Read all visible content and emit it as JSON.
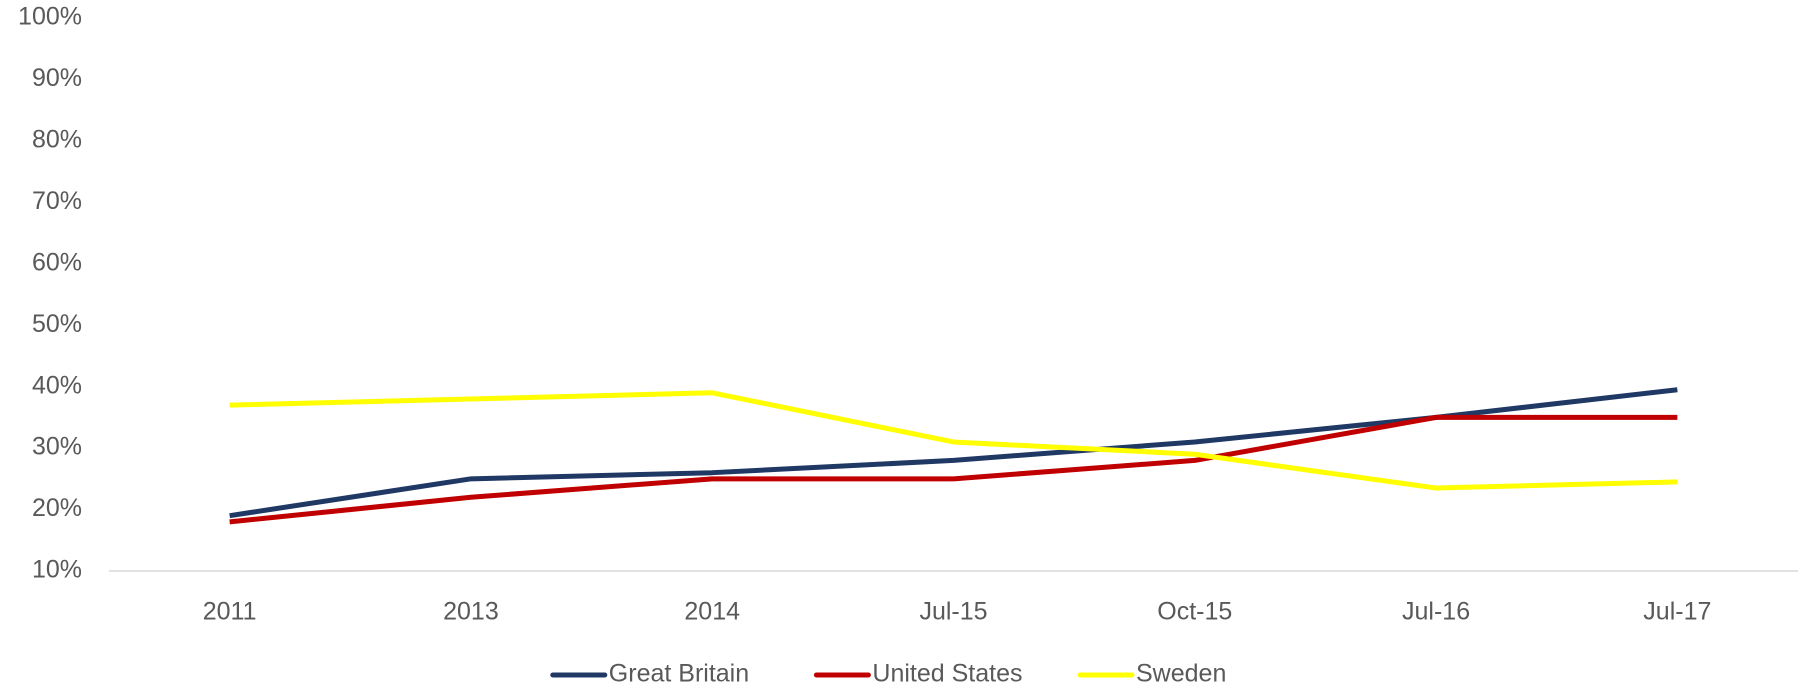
{
  "chart_data": {
    "type": "line",
    "categories": [
      "2011",
      "2013",
      "2014",
      "Jul-15",
      "Oct-15",
      "Jul-16",
      "Jul-17"
    ],
    "series": [
      {
        "name": "Great Britain",
        "color": "#1f3864",
        "values": [
          19,
          25,
          26,
          28,
          31,
          35,
          39.5
        ]
      },
      {
        "name": "United States",
        "color": "#c00000",
        "values": [
          18,
          22,
          25,
          25,
          28,
          35,
          35
        ]
      },
      {
        "name": "Sweden",
        "color": "#ffff00",
        "values": [
          37,
          38,
          39,
          31,
          29,
          23.5,
          24.5
        ]
      }
    ],
    "ylim": [
      10,
      100
    ],
    "yticks": [
      {
        "value": 10,
        "label": "10%"
      },
      {
        "value": 20,
        "label": "20%"
      },
      {
        "value": 30,
        "label": "30%"
      },
      {
        "value": 40,
        "label": "40%"
      },
      {
        "value": 50,
        "label": "50%"
      },
      {
        "value": 60,
        "label": "60%"
      },
      {
        "value": 70,
        "label": "70%"
      },
      {
        "value": 80,
        "label": "80%"
      },
      {
        "value": 90,
        "label": "90%"
      },
      {
        "value": 100,
        "label": "100%"
      }
    ],
    "grid": false,
    "legend": "bottom"
  }
}
